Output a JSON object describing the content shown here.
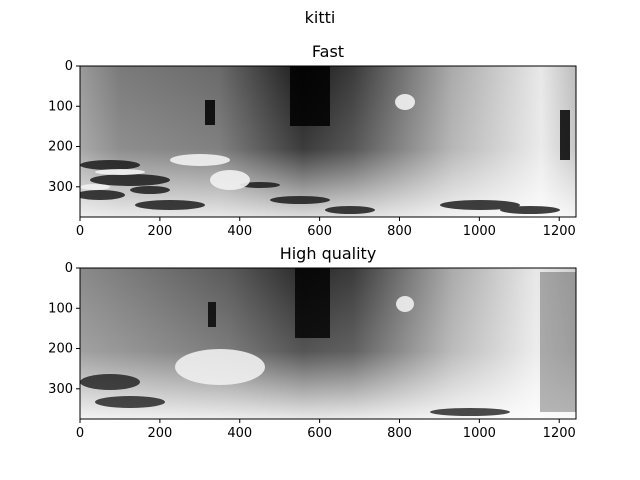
{
  "figure": {
    "title": "kitti"
  },
  "panels": [
    {
      "title": "Fast",
      "xticks": [
        0,
        200,
        400,
        600,
        800,
        1000,
        1200
      ],
      "yticks": [
        0,
        100,
        200,
        300
      ],
      "xlim": [
        0,
        1242
      ],
      "ylim": [
        375,
        0
      ]
    },
    {
      "title": "High quality",
      "xticks": [
        0,
        200,
        400,
        600,
        800,
        1000,
        1200
      ],
      "yticks": [
        0,
        100,
        200,
        300
      ],
      "xlim": [
        0,
        1242
      ],
      "ylim": [
        375,
        0
      ]
    }
  ]
}
